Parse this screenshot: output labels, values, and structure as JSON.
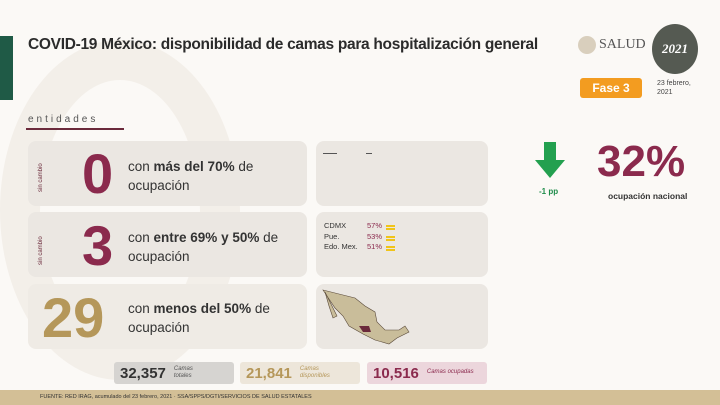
{
  "header": {
    "title": "COVID-19 México: disponibilidad de camas para hospitalización general",
    "logo_salud": "SALUD",
    "logo_year": "2021",
    "phase": "Fase 3",
    "date": "23 febrero, 2021"
  },
  "section_label": "entidades",
  "rows": [
    {
      "side": "sin cambio",
      "count": "0",
      "count_color": "#8b2a4d",
      "text_pre": "con ",
      "text_bold": "más del 70%",
      "text_post": " de ocupación"
    },
    {
      "side": "sin cambio",
      "count": "3",
      "count_color": "#8b2a4d",
      "text_pre": "con ",
      "text_bold": "entre 69% y 50%",
      "text_post": " de ocupación"
    },
    {
      "side": "",
      "count": "29",
      "count_color": "#b5975a",
      "text_pre": "con ",
      "text_bold": "menos del 50%",
      "text_post": " de ocupación"
    }
  ],
  "states": [
    {
      "name": "CDMX",
      "pct": "57%",
      "trend": "equal-icon"
    },
    {
      "name": "Pue.",
      "pct": "53%",
      "trend": "equal-icon"
    },
    {
      "name": "Edo. Mex.",
      "pct": "51%",
      "trend": "equal-icon"
    }
  ],
  "national": {
    "change": "-1 pp",
    "trend_icon": "arrow-down-icon",
    "pct": "32%",
    "label": "ocupación nacional"
  },
  "totals": [
    {
      "value": "32,357",
      "label": "Camas totales",
      "bg": "#d6d4d1",
      "color": "#333"
    },
    {
      "value": "21,841",
      "label": "Camas disponibles",
      "bg": "#ede6da",
      "color": "#b5975a"
    },
    {
      "value": "10,516",
      "label": "Camas ocupadas",
      "bg": "#ecd6dc",
      "color": "#8b2a4d"
    }
  ],
  "footer": "FUENTE: RED IRAG, acumulado del 23 febrero, 2021   ·   SSA/SPPS/DGTI/SERVICIOS DE SALUD ESTATALES"
}
